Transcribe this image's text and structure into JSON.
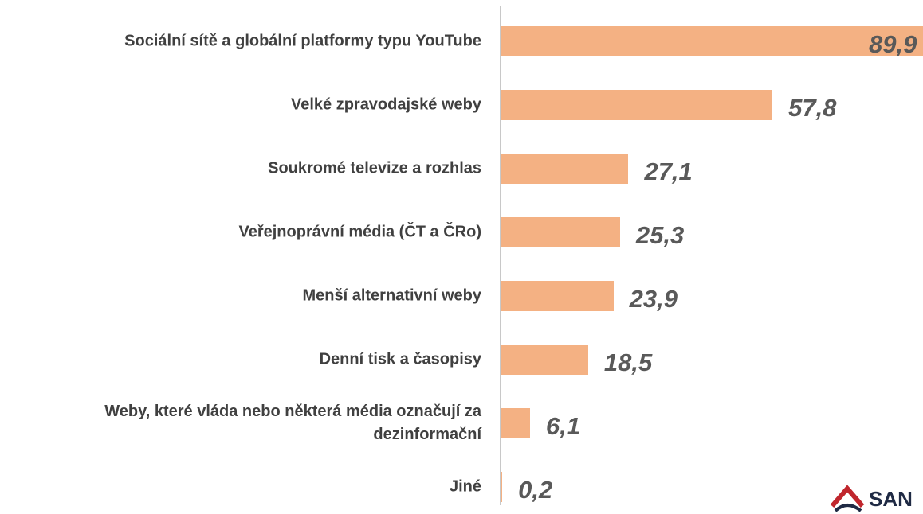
{
  "chart_data": {
    "type": "bar",
    "orientation": "horizontal",
    "categories": [
      "Sociální sítě a globální platformy typu YouTube",
      "Velké zpravodajské weby",
      "Soukromé televize a rozhlas",
      "Veřejnoprávní média (ČT a ČRo)",
      "Menší alternativní weby",
      "Denní tisk a časopisy",
      "Weby, které vláda nebo některá média označují za dezinformační",
      "Jiné"
    ],
    "values": [
      89.9,
      57.8,
      27.1,
      25.3,
      23.9,
      18.5,
      6.1,
      0.2
    ],
    "value_labels": [
      "89,9",
      "57,8",
      "27,1",
      "25,3",
      "23,9",
      "18,5",
      "6,1",
      "0,2"
    ],
    "color": "#f4b183"
  },
  "logo": "SAN"
}
